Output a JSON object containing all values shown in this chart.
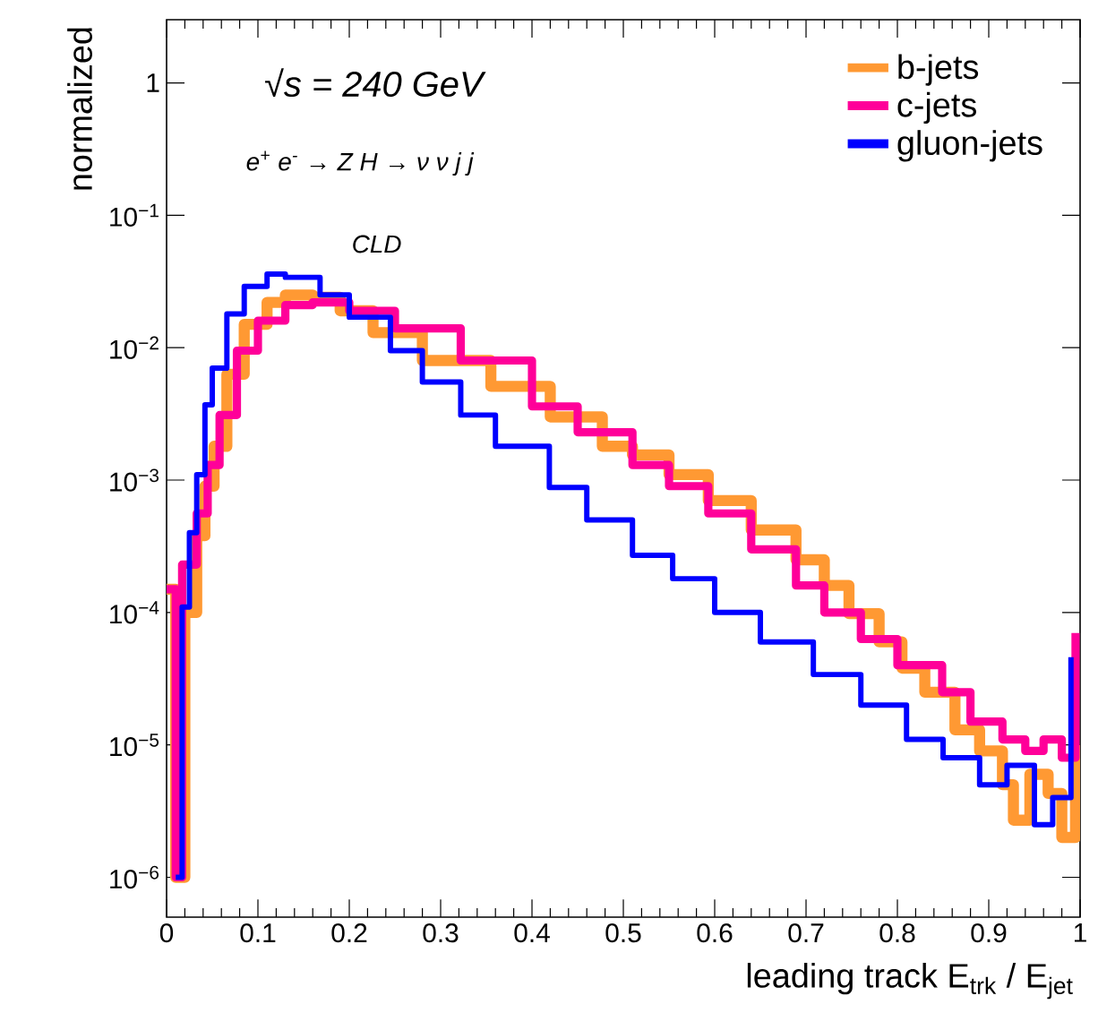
{
  "chart_data": {
    "type": "step",
    "xlabel": "leading track E$_{trk}$ / E$_{jet}$",
    "ylabel": "normalized",
    "annotations": [
      "√s = 240 GeV",
      "e$^{+}$ e$^{-}$ → Z H  → ν ν j j",
      "CLD"
    ],
    "log": "y",
    "legend": "top right",
    "line_style": "solid",
    "xlim": [
      0,
      1
    ],
    "ylim": [
      5e-07,
      3
    ],
    "xticks": [
      0,
      0.1,
      0.2,
      0.3,
      0.4,
      0.5,
      0.6,
      0.7,
      0.8,
      0.9,
      1
    ],
    "yticks": [
      {
        "value": 1e-06,
        "label": "10$^{−6}$"
      },
      {
        "value": 1e-05,
        "label": "10$^{−5}$"
      },
      {
        "value": 0.0001,
        "label": "10$^{−4}$"
      },
      {
        "value": 0.001,
        "label": "10$^{−3}$"
      },
      {
        "value": 0.01,
        "label": "10$^{−2}$"
      },
      {
        "value": 0.1,
        "label": "10$^{−1}$"
      },
      1
    ],
    "series": [
      {
        "name": "b-jets",
        "color": "#ff9933",
        "x": [
          0.0,
          0.01,
          0.02,
          0.033,
          0.042,
          0.052,
          0.066,
          0.085,
          0.11,
          0.13,
          0.16,
          0.19,
          0.226,
          0.28,
          0.355,
          0.42,
          0.477,
          0.51,
          0.55,
          0.593,
          0.64,
          0.689,
          0.72,
          0.747,
          0.78,
          0.805,
          0.83,
          0.863,
          0.89,
          0.915,
          0.927,
          0.945,
          0.965,
          0.98,
          0.995
        ],
        "values": [
          0.00015,
          1e-06,
          0.0001,
          0.00038,
          0.0009,
          0.0018,
          0.0063,
          0.015,
          0.022,
          0.025,
          0.024,
          0.019,
          0.013,
          0.008,
          0.0051,
          0.003,
          0.0018,
          0.00155,
          0.0011,
          0.0007,
          0.00042,
          0.00025,
          0.00016,
          9.8e-05,
          6e-05,
          3.8e-05,
          2.5e-05,
          1.3e-05,
          9e-06,
          5e-06,
          2.7e-06,
          6e-06,
          4.3e-06,
          2e-06,
          1e-05
        ]
      },
      {
        "name": "c-jets",
        "color": "#ff0099",
        "x": [
          0.0,
          0.01,
          0.017,
          0.033,
          0.045,
          0.058,
          0.077,
          0.1,
          0.13,
          0.16,
          0.2,
          0.25,
          0.322,
          0.4,
          0.45,
          0.51,
          0.55,
          0.593,
          0.64,
          0.689,
          0.72,
          0.76,
          0.8,
          0.849,
          0.88,
          0.915,
          0.94,
          0.96,
          0.98,
          0.995
        ],
        "values": [
          0.00015,
          1e-06,
          0.00023,
          0.00056,
          0.0013,
          0.0031,
          0.0095,
          0.016,
          0.021,
          0.022,
          0.019,
          0.014,
          0.008,
          0.0036,
          0.0023,
          0.0013,
          0.0009,
          0.00056,
          0.0003,
          0.00016,
          0.0001,
          6.3e-05,
          4e-05,
          2.5e-05,
          1.5e-05,
          1.1e-05,
          9e-06,
          1.1e-05,
          8e-06,
          7e-05
        ]
      },
      {
        "name": "gluon-jets",
        "color": "#0000ff",
        "x": [
          0.01,
          0.017,
          0.025,
          0.033,
          0.042,
          0.05,
          0.066,
          0.085,
          0.11,
          0.13,
          0.168,
          0.2,
          0.245,
          0.28,
          0.322,
          0.36,
          0.419,
          0.46,
          0.51,
          0.554,
          0.6,
          0.65,
          0.708,
          0.76,
          0.81,
          0.85,
          0.89,
          0.92,
          0.95,
          0.97,
          0.99
        ],
        "values": [
          1e-06,
          0.00011,
          0.0004,
          0.0011,
          0.0037,
          0.007,
          0.018,
          0.029,
          0.036,
          0.034,
          0.025,
          0.017,
          0.0095,
          0.0055,
          0.0031,
          0.0018,
          0.00088,
          0.0005,
          0.00027,
          0.00018,
          0.0001,
          6e-05,
          3.4e-05,
          2e-05,
          1.1e-05,
          8e-06,
          5e-06,
          7e-06,
          2.5e-06,
          4e-06,
          4.6e-05
        ]
      }
    ]
  }
}
